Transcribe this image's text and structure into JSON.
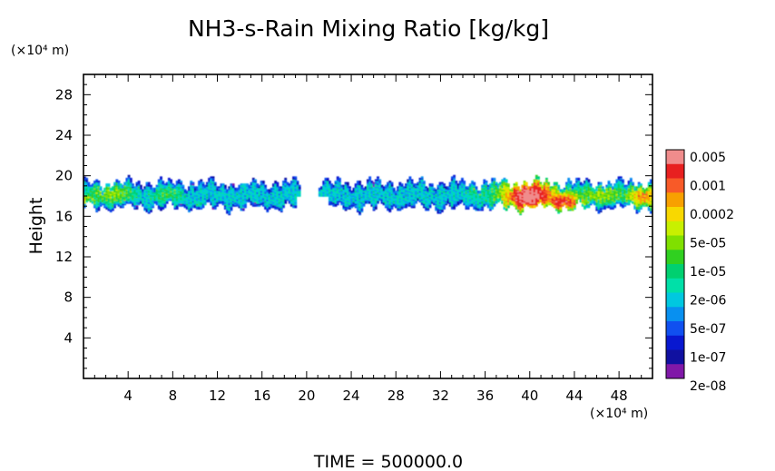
{
  "chart_data": {
    "type": "heatmap",
    "title": "NH3-s-Rain Mixing Ratio [kg/kg]",
    "ylabel": "Height",
    "y_unit": "(×10⁴ m)",
    "x_unit": "(×10⁴ m)",
    "xlim": [
      0,
      51
    ],
    "ylim": [
      0,
      30
    ],
    "x_ticks": [
      "4",
      "8",
      "12",
      "16",
      "20",
      "24",
      "28",
      "32",
      "36",
      "40",
      "44",
      "48"
    ],
    "y_ticks": [
      "4",
      "8",
      "12",
      "16",
      "20",
      "24",
      "28"
    ],
    "footer": "TIME = 500000.0",
    "colorbar": {
      "labels": [
        "0.005",
        "0.001",
        "0.0002",
        "5e-05",
        "1e-05",
        "2e-06",
        "5e-07",
        "1e-07",
        "2e-08"
      ],
      "levels": [
        {
          "min": 0.005,
          "color": "#f08c8c"
        },
        {
          "min": 0.001,
          "color": "#e82020"
        },
        {
          "min": 0.0005,
          "color": "#f85a28"
        },
        {
          "min": 0.0002,
          "color": "#f8a000"
        },
        {
          "min": 0.0001,
          "color": "#f8d800"
        },
        {
          "min": 5e-05,
          "color": "#c8f000"
        },
        {
          "min": 2e-05,
          "color": "#80e000"
        },
        {
          "min": 1e-05,
          "color": "#30d020"
        },
        {
          "min": 5e-06,
          "color": "#00d070"
        },
        {
          "min": 2e-06,
          "color": "#00e0a8"
        },
        {
          "min": 1e-06,
          "color": "#00c8e0"
        },
        {
          "min": 5e-07,
          "color": "#0890f0"
        },
        {
          "min": 2e-07,
          "color": "#1050f0"
        },
        {
          "min": 1e-07,
          "color": "#0818d0"
        },
        {
          "min": 5e-08,
          "color": "#1010a0"
        },
        {
          "min": 2e-08,
          "color": "#8018a8"
        }
      ]
    },
    "cloud_regions": [
      {
        "x": [
          0,
          10
        ],
        "y": [
          16.5,
          20.2
        ],
        "peak": "1e-05"
      },
      {
        "x": [
          9,
          12
        ],
        "y": [
          16.6,
          18.2
        ],
        "peak": "1e-05"
      },
      {
        "x": [
          12,
          19
        ],
        "y": [
          16.2,
          20.0
        ],
        "peak": "2e-06"
      },
      {
        "x": [
          21,
          34
        ],
        "y": [
          17.6,
          20.2
        ],
        "peak": "5e-07"
      },
      {
        "x": [
          34,
          38
        ],
        "y": [
          17.0,
          20.2
        ],
        "peak": "5e-07"
      },
      {
        "x": [
          38,
          46
        ],
        "y": [
          16.0,
          20.4
        ],
        "peak": "0.005"
      },
      {
        "x": [
          46,
          51
        ],
        "y": [
          16.4,
          20.2
        ],
        "peak": "0.0002"
      }
    ]
  }
}
